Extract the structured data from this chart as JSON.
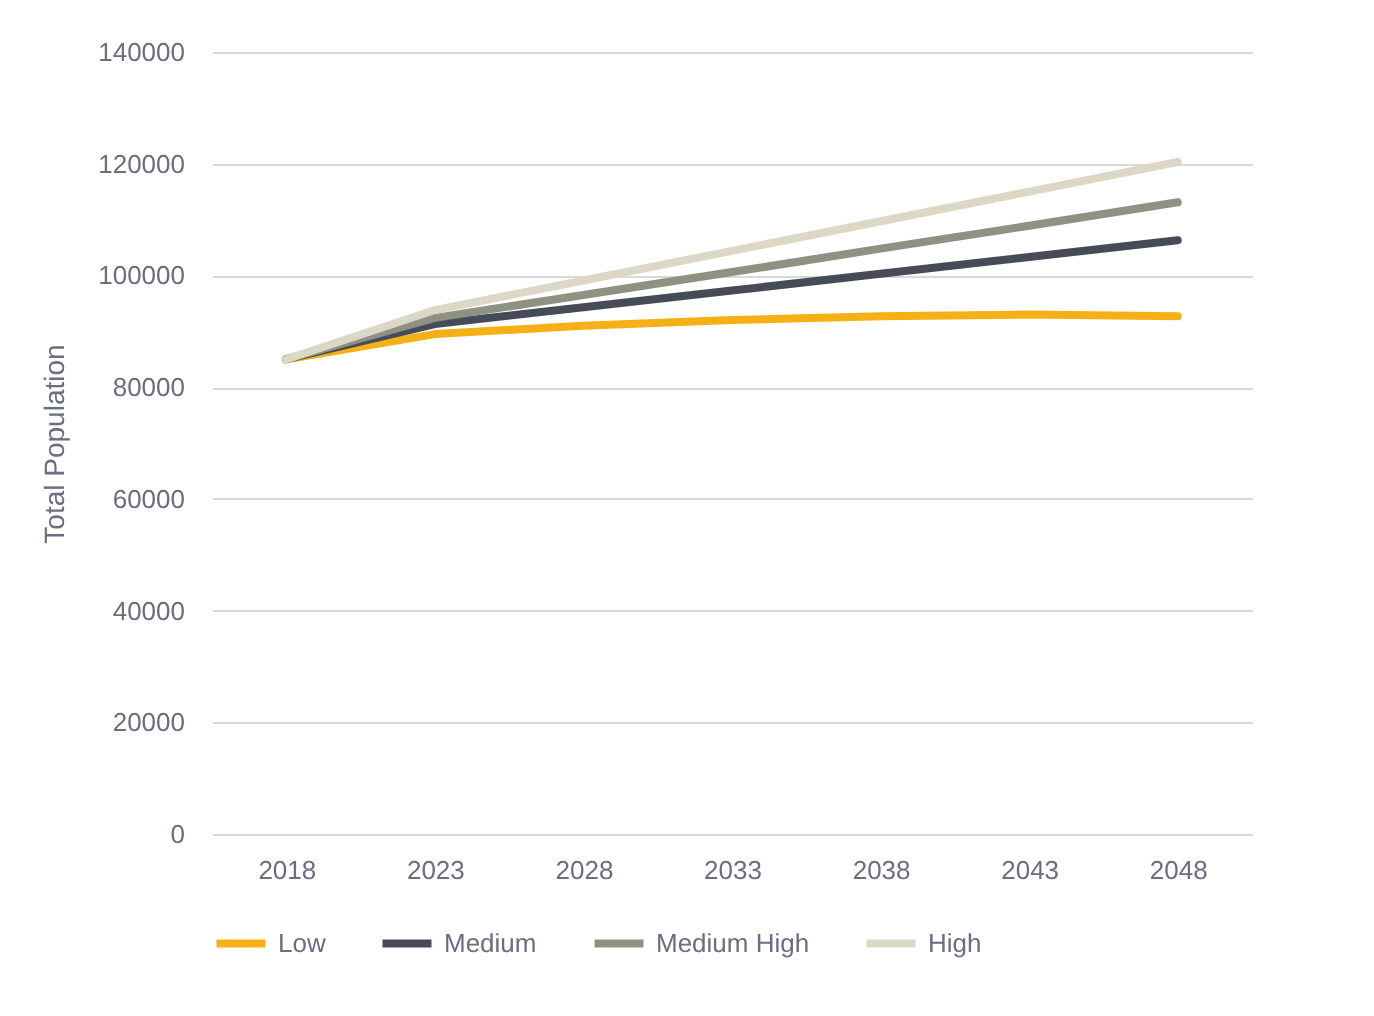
{
  "chart_data": {
    "type": "line",
    "ylabel": "Total Population",
    "categories": [
      "2018",
      "2023",
      "2028",
      "2033",
      "2038",
      "2043",
      "2048"
    ],
    "series": [
      {
        "name": "Low",
        "color": "#f5b016",
        "values": [
          85000,
          89500,
          91000,
          92000,
          92700,
          93000,
          92700
        ]
      },
      {
        "name": "Medium",
        "color": "#474b57",
        "values": [
          85000,
          91300,
          94300,
          97300,
          100300,
          103300,
          106300
        ]
      },
      {
        "name": "Medium High",
        "color": "#8f9182",
        "values": [
          85000,
          92400,
          96500,
          100600,
          104800,
          108900,
          113100
        ]
      },
      {
        "name": "High",
        "color": "#dcd8c5",
        "values": [
          85000,
          93800,
          99100,
          104400,
          109700,
          115000,
          120300
        ]
      }
    ],
    "ylim": [
      0,
      140000
    ],
    "yticks": [
      0,
      20000,
      40000,
      60000,
      80000,
      100000,
      120000,
      140000
    ],
    "grid": "y",
    "legend": "bottom",
    "marker": "none",
    "line_style": "solid"
  }
}
